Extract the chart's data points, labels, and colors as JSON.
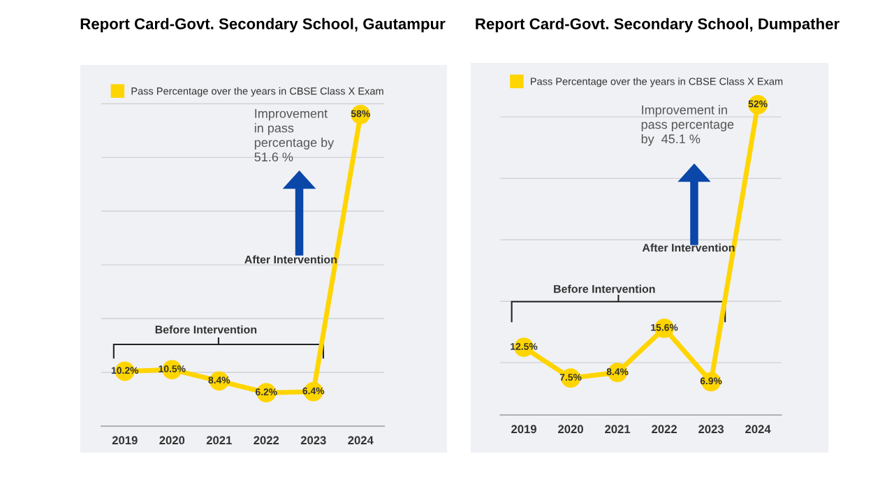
{
  "chart_data": [
    {
      "type": "line",
      "title": "Report Card-Govt. Secondary School, Gautampur",
      "categories": [
        "2019",
        "2020",
        "2021",
        "2022",
        "2023",
        "2024"
      ],
      "series": [
        {
          "name": "Pass Percentage over the years in CBSE Class X Exam",
          "color": "#ffd500",
          "values": [
            10.2,
            10.5,
            8.4,
            6.2,
            6.4,
            58
          ],
          "value_labels": [
            "10.2%",
            "10.5%",
            "8.4%",
            "6.2%",
            "6.4%",
            "58%"
          ]
        }
      ],
      "tick_labels": "x",
      "grid": "y",
      "legend": "top left",
      "marker": "circle",
      "line_style": "solid",
      "annotations": [
        "Improvement\nin pass\npercentage by\n51.6 %",
        "After Intervention",
        "Before Intervention"
      ]
    },
    {
      "type": "line",
      "title": "Report Card-Govt. Secondary School, Dumpather",
      "categories": [
        "2019",
        "2020",
        "2021",
        "2022",
        "2023",
        "2024"
      ],
      "series": [
        {
          "name": "Pass Percentage over the years in CBSE Class X Exam",
          "color": "#ffd500",
          "values": [
            12.5,
            7.5,
            8.4,
            15.6,
            6.9,
            52
          ],
          "value_labels": [
            "12.5%",
            "7.5%",
            "8.4%",
            "15.6%",
            "6.9%",
            "52%"
          ]
        }
      ],
      "tick_labels": "x",
      "grid": "y",
      "legend": "top left",
      "marker": "circle",
      "line_style": "solid",
      "annotations": [
        "Improvement in\npass percentage\nby  45.1 %",
        "After Intervention",
        "Before Intervention"
      ]
    }
  ]
}
